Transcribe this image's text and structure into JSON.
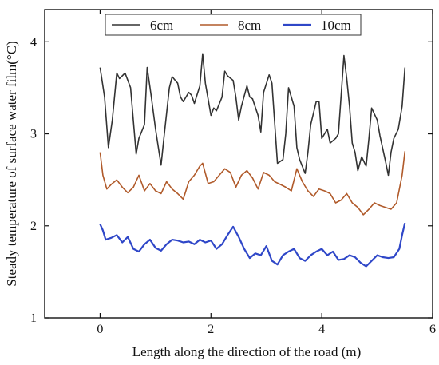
{
  "chart_data": {
    "type": "line",
    "xlabel": "Length along the direction of the road (m)",
    "ylabel": "Steady temperature of surface water film(°C)",
    "xlim": [
      -1,
      6
    ],
    "ylim": [
      1,
      4.35
    ],
    "xticks": [
      0,
      2,
      4,
      6
    ],
    "yticks": [
      1,
      2,
      3,
      4
    ],
    "legend": "top",
    "grid": false,
    "series": [
      {
        "name": "6cm",
        "color": "#333333",
        "x": [
          0.0,
          0.08,
          0.15,
          0.22,
          0.3,
          0.35,
          0.45,
          0.55,
          0.65,
          0.7,
          0.8,
          0.85,
          0.92,
          1.0,
          1.1,
          1.15,
          1.25,
          1.3,
          1.4,
          1.45,
          1.5,
          1.6,
          1.65,
          1.7,
          1.8,
          1.85,
          1.9,
          2.0,
          2.05,
          2.1,
          2.2,
          2.25,
          2.3,
          2.4,
          2.45,
          2.5,
          2.55,
          2.65,
          2.7,
          2.75,
          2.85,
          2.9,
          2.95,
          3.05,
          3.1,
          3.2,
          3.3,
          3.35,
          3.4,
          3.5,
          3.55,
          3.6,
          3.7,
          3.75,
          3.8,
          3.9,
          3.95,
          4.0,
          4.1,
          4.15,
          4.25,
          4.3,
          4.4,
          4.45,
          4.5,
          4.55,
          4.6,
          4.65,
          4.72,
          4.8,
          4.85,
          4.9,
          5.0,
          5.05,
          5.15,
          5.2,
          5.25,
          5.3,
          5.38,
          5.45,
          5.5
        ],
        "y": [
          3.72,
          3.4,
          2.85,
          3.15,
          3.66,
          3.6,
          3.66,
          3.5,
          2.78,
          2.95,
          3.1,
          3.72,
          3.42,
          3.05,
          2.66,
          2.95,
          3.5,
          3.62,
          3.55,
          3.4,
          3.35,
          3.45,
          3.42,
          3.33,
          3.52,
          3.87,
          3.55,
          3.2,
          3.28,
          3.25,
          3.4,
          3.68,
          3.63,
          3.58,
          3.4,
          3.15,
          3.3,
          3.52,
          3.4,
          3.38,
          3.2,
          3.02,
          3.45,
          3.64,
          3.55,
          2.68,
          2.72,
          3.0,
          3.5,
          3.3,
          2.85,
          2.72,
          2.57,
          2.8,
          3.1,
          3.35,
          3.35,
          2.95,
          3.05,
          2.9,
          2.95,
          3.0,
          3.85,
          3.6,
          3.3,
          2.9,
          2.8,
          2.6,
          2.75,
          2.65,
          2.95,
          3.28,
          3.15,
          2.98,
          2.7,
          2.55,
          2.8,
          2.95,
          3.05,
          3.3,
          3.72
        ]
      },
      {
        "name": "8cm",
        "color": "#b05a2a",
        "x": [
          0.0,
          0.05,
          0.12,
          0.2,
          0.3,
          0.4,
          0.5,
          0.6,
          0.7,
          0.8,
          0.9,
          1.0,
          1.1,
          1.2,
          1.3,
          1.4,
          1.5,
          1.6,
          1.7,
          1.8,
          1.85,
          1.95,
          2.05,
          2.15,
          2.25,
          2.35,
          2.45,
          2.55,
          2.65,
          2.75,
          2.85,
          2.95,
          3.05,
          3.15,
          3.25,
          3.35,
          3.45,
          3.55,
          3.65,
          3.75,
          3.85,
          3.95,
          4.05,
          4.15,
          4.25,
          4.35,
          4.45,
          4.55,
          4.65,
          4.75,
          4.85,
          4.95,
          5.05,
          5.15,
          5.25,
          5.35,
          5.45,
          5.5
        ],
        "y": [
          2.8,
          2.55,
          2.4,
          2.45,
          2.5,
          2.42,
          2.36,
          2.42,
          2.55,
          2.38,
          2.46,
          2.38,
          2.35,
          2.48,
          2.4,
          2.35,
          2.29,
          2.48,
          2.55,
          2.65,
          2.68,
          2.46,
          2.48,
          2.55,
          2.62,
          2.58,
          2.42,
          2.55,
          2.6,
          2.52,
          2.4,
          2.58,
          2.55,
          2.48,
          2.45,
          2.42,
          2.38,
          2.62,
          2.48,
          2.38,
          2.32,
          2.4,
          2.38,
          2.35,
          2.25,
          2.28,
          2.35,
          2.25,
          2.2,
          2.12,
          2.18,
          2.25,
          2.22,
          2.2,
          2.18,
          2.25,
          2.55,
          2.81
        ]
      },
      {
        "name": "10cm",
        "color": "#2f47c8",
        "x": [
          0.0,
          0.05,
          0.1,
          0.2,
          0.3,
          0.4,
          0.5,
          0.6,
          0.7,
          0.8,
          0.9,
          1.0,
          1.1,
          1.2,
          1.3,
          1.4,
          1.5,
          1.6,
          1.7,
          1.8,
          1.9,
          2.0,
          2.1,
          2.2,
          2.3,
          2.4,
          2.5,
          2.6,
          2.7,
          2.8,
          2.9,
          3.0,
          3.1,
          3.2,
          3.3,
          3.4,
          3.5,
          3.6,
          3.7,
          3.8,
          3.9,
          4.0,
          4.1,
          4.2,
          4.3,
          4.4,
          4.5,
          4.6,
          4.7,
          4.8,
          4.9,
          5.0,
          5.1,
          5.2,
          5.3,
          5.4,
          5.45,
          5.5
        ],
        "y": [
          2.02,
          1.95,
          1.85,
          1.87,
          1.9,
          1.82,
          1.88,
          1.75,
          1.72,
          1.8,
          1.85,
          1.76,
          1.73,
          1.8,
          1.85,
          1.84,
          1.82,
          1.83,
          1.8,
          1.85,
          1.82,
          1.84,
          1.75,
          1.8,
          1.9,
          1.99,
          1.88,
          1.75,
          1.65,
          1.7,
          1.68,
          1.78,
          1.62,
          1.58,
          1.68,
          1.72,
          1.75,
          1.65,
          1.62,
          1.68,
          1.72,
          1.75,
          1.68,
          1.72,
          1.63,
          1.64,
          1.68,
          1.66,
          1.6,
          1.56,
          1.62,
          1.68,
          1.66,
          1.65,
          1.66,
          1.75,
          1.9,
          2.03
        ]
      }
    ]
  }
}
